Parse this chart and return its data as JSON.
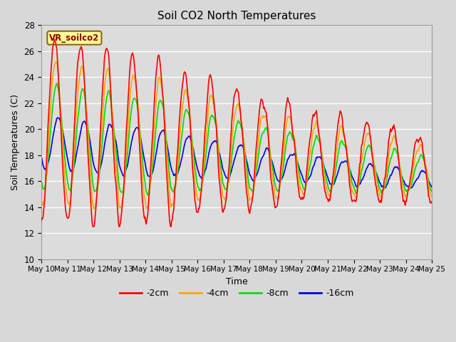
{
  "title": "Soil CO2 North Temperatures",
  "xlabel": "Time",
  "ylabel": "Soil Temperatures (C)",
  "annotation": "VR_soilco2",
  "ylim": [
    10,
    28
  ],
  "background_color": "#dcdcdc",
  "plot_bg_color": "#dcdcdc",
  "colors": {
    "-2cm": "#ff0000",
    "-4cm": "#ffa500",
    "-8cm": "#00dd00",
    "-16cm": "#0000ee"
  },
  "legend_labels": [
    "-2cm",
    "-4cm",
    "-8cm",
    "-16cm"
  ],
  "x_tick_labels": [
    "May 10",
    "May 11",
    "May 12",
    "May 13",
    "May 14",
    "May 15",
    "May 16",
    "May 17",
    "May 18",
    "May 19",
    "May 20",
    "May 21",
    "May 22",
    "May 23",
    "May 24",
    "May 25"
  ],
  "n_points": 721
}
